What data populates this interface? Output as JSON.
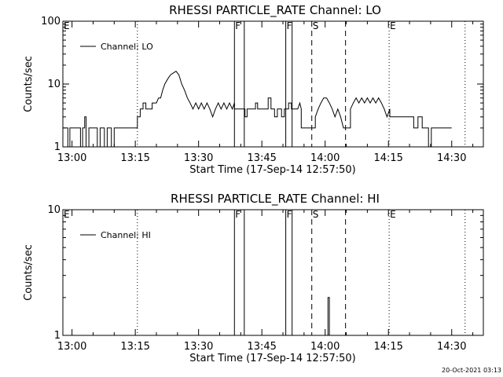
{
  "footer_timestamp": "20-Oct-2021 03:13",
  "colors": {
    "background": "#ffffff",
    "foreground": "#000000"
  },
  "chart_data": [
    {
      "type": "line",
      "title": "RHESSI PARTICLE_RATE Channel: LO",
      "xlabel": "Start Time (17-Sep-14 12:57:50)",
      "ylabel": "Counts/sec",
      "y_scale": "log",
      "ylim": [
        1,
        100
      ],
      "xlim": [
        "12:57:50",
        "14:37:30"
      ],
      "x_ticks": [
        "13:00",
        "13:15",
        "13:30",
        "13:45",
        "14:00",
        "14:15",
        "14:30"
      ],
      "y_ticks": [
        "1",
        "10",
        "100"
      ],
      "legend": {
        "position": "top-left",
        "entries": [
          "Channel: LO"
        ]
      },
      "grid": false,
      "annotations": [
        {
          "label": "E",
          "time": "12:57:50",
          "style": "dotted"
        },
        {
          "label": "",
          "time": "13:15:30",
          "style": "dotted"
        },
        {
          "label": "F",
          "time": "13:38:30",
          "style": "solid"
        },
        {
          "label": "",
          "time": "13:40:50",
          "style": "solid"
        },
        {
          "label": "F",
          "time": "13:50:40",
          "style": "solid"
        },
        {
          "label": "",
          "time": "13:52:10",
          "style": "solid"
        },
        {
          "label": "S",
          "time": "13:56:50",
          "style": "dashed"
        },
        {
          "label": "",
          "time": "14:04:50",
          "style": "dashed"
        },
        {
          "label": "E",
          "time": "14:15:10",
          "style": "dotted"
        },
        {
          "label": "",
          "time": "14:33:10",
          "style": "dotted"
        }
      ],
      "series": [
        {
          "name": "Channel: LO",
          "points": [
            [
              "12:57:50",
              2
            ],
            [
              "12:59:00",
              2
            ],
            [
              "12:59:00",
              1
            ],
            [
              "12:59:30",
              1
            ],
            [
              "12:59:30",
              2
            ],
            [
              "13:02:00",
              2
            ],
            [
              "13:02:00",
              1
            ],
            [
              "13:02:30",
              1
            ],
            [
              "13:02:30",
              2
            ],
            [
              "13:03:00",
              2
            ],
            [
              "13:03:00",
              3
            ],
            [
              "13:03:20",
              3
            ],
            [
              "13:03:20",
              1
            ],
            [
              "13:04:00",
              1
            ],
            [
              "13:04:00",
              2
            ],
            [
              "13:06:00",
              2
            ],
            [
              "13:06:00",
              1
            ],
            [
              "13:06:40",
              1
            ],
            [
              "13:06:40",
              2
            ],
            [
              "13:07:40",
              2
            ],
            [
              "13:07:40",
              1
            ],
            [
              "13:08:20",
              1
            ],
            [
              "13:08:20",
              2
            ],
            [
              "13:09:20",
              2
            ],
            [
              "13:09:20",
              1
            ],
            [
              "13:10:00",
              1
            ],
            [
              "13:10:00",
              2
            ],
            [
              "13:15:30",
              2
            ],
            [
              "13:15:30",
              3
            ],
            [
              "13:16:10",
              3
            ],
            [
              "13:16:10",
              4
            ],
            [
              "13:16:50",
              4
            ],
            [
              "13:16:50",
              5
            ],
            [
              "13:17:30",
              5
            ],
            [
              "13:17:30",
              4
            ],
            [
              "13:19:00",
              4
            ],
            [
              "13:19:00",
              5
            ],
            [
              "13:20:00",
              5
            ],
            [
              "13:20:30",
              6
            ],
            [
              "13:21:00",
              6
            ],
            [
              "13:21:30",
              8
            ],
            [
              "13:22:00",
              10
            ],
            [
              "13:22:40",
              12
            ],
            [
              "13:23:20",
              14
            ],
            [
              "13:24:00",
              15
            ],
            [
              "13:24:40",
              16
            ],
            [
              "13:25:20",
              14
            ],
            [
              "13:26:00",
              10
            ],
            [
              "13:26:40",
              8
            ],
            [
              "13:27:20",
              6
            ],
            [
              "13:28:00",
              5
            ],
            [
              "13:28:40",
              4
            ],
            [
              "13:29:20",
              5
            ],
            [
              "13:30:00",
              4
            ],
            [
              "13:30:40",
              5
            ],
            [
              "13:31:20",
              4
            ],
            [
              "13:32:00",
              5
            ],
            [
              "13:32:40",
              4
            ],
            [
              "13:33:20",
              3
            ],
            [
              "13:34:00",
              4
            ],
            [
              "13:34:40",
              5
            ],
            [
              "13:35:20",
              4
            ],
            [
              "13:36:00",
              5
            ],
            [
              "13:36:40",
              4
            ],
            [
              "13:37:20",
              5
            ],
            [
              "13:38:00",
              4
            ],
            [
              "13:38:30",
              5
            ],
            [
              "13:38:30",
              4
            ],
            [
              "13:41:00",
              4
            ],
            [
              "13:41:00",
              3
            ],
            [
              "13:41:30",
              3
            ],
            [
              "13:41:30",
              4
            ],
            [
              "13:43:30",
              4
            ],
            [
              "13:43:30",
              5
            ],
            [
              "13:44:00",
              5
            ],
            [
              "13:44:00",
              4
            ],
            [
              "13:46:30",
              4
            ],
            [
              "13:46:30",
              6
            ],
            [
              "13:47:10",
              6
            ],
            [
              "13:47:10",
              4
            ],
            [
              "13:48:00",
              4
            ],
            [
              "13:48:00",
              3
            ],
            [
              "13:48:40",
              3
            ],
            [
              "13:48:40",
              4
            ],
            [
              "13:49:40",
              4
            ],
            [
              "13:49:40",
              3
            ],
            [
              "13:50:20",
              3
            ],
            [
              "13:50:20",
              4
            ],
            [
              "13:51:20",
              4
            ],
            [
              "13:51:20",
              5
            ],
            [
              "13:52:00",
              5
            ],
            [
              "13:52:00",
              4
            ],
            [
              "13:53:30",
              4
            ],
            [
              "13:54:00",
              5
            ],
            [
              "13:54:20",
              4
            ],
            [
              "13:54:20",
              2
            ],
            [
              "13:57:40",
              2
            ],
            [
              "13:57:40",
              3
            ],
            [
              "13:58:20",
              4
            ],
            [
              "13:59:00",
              5
            ],
            [
              "13:59:40",
              6
            ],
            [
              "14:00:20",
              6
            ],
            [
              "14:01:00",
              5
            ],
            [
              "14:01:40",
              4
            ],
            [
              "14:02:20",
              3
            ],
            [
              "14:03:00",
              4
            ],
            [
              "14:03:40",
              3
            ],
            [
              "14:04:20",
              2
            ],
            [
              "14:05:00",
              2
            ],
            [
              "14:06:00",
              2
            ],
            [
              "14:06:00",
              4
            ],
            [
              "14:06:40",
              5
            ],
            [
              "14:07:20",
              6
            ],
            [
              "14:08:00",
              5
            ],
            [
              "14:08:40",
              6
            ],
            [
              "14:09:20",
              5
            ],
            [
              "14:10:00",
              6
            ],
            [
              "14:10:40",
              5
            ],
            [
              "14:11:20",
              6
            ],
            [
              "14:12:00",
              5
            ],
            [
              "14:12:40",
              6
            ],
            [
              "14:13:20",
              5
            ],
            [
              "14:14:00",
              4
            ],
            [
              "14:14:40",
              3
            ],
            [
              "14:15:20",
              4
            ],
            [
              "14:15:20",
              3
            ],
            [
              "14:21:00",
              3
            ],
            [
              "14:21:00",
              2
            ],
            [
              "14:22:00",
              2
            ],
            [
              "14:22:00",
              3
            ],
            [
              "14:23:00",
              3
            ],
            [
              "14:23:00",
              2
            ],
            [
              "14:24:30",
              2
            ],
            [
              "14:24:30",
              1
            ],
            [
              "14:25:10",
              1
            ],
            [
              "14:25:10",
              2
            ],
            [
              "14:30:00",
              2
            ]
          ]
        }
      ]
    },
    {
      "type": "line",
      "title": "RHESSI PARTICLE_RATE Channel: HI",
      "xlabel": "Start Time (17-Sep-14 12:57:50)",
      "ylabel": "Counts/sec",
      "y_scale": "log",
      "ylim": [
        1,
        10
      ],
      "xlim": [
        "12:57:50",
        "14:37:30"
      ],
      "x_ticks": [
        "13:00",
        "13:15",
        "13:30",
        "13:45",
        "14:00",
        "14:15",
        "14:30"
      ],
      "y_ticks": [
        "1",
        "10"
      ],
      "legend": {
        "position": "top-left",
        "entries": [
          "Channel: HI"
        ]
      },
      "grid": false,
      "annotations": [
        {
          "label": "E",
          "time": "12:57:50",
          "style": "dotted"
        },
        {
          "label": "",
          "time": "13:15:30",
          "style": "dotted"
        },
        {
          "label": "F",
          "time": "13:38:30",
          "style": "solid"
        },
        {
          "label": "",
          "time": "13:40:50",
          "style": "solid"
        },
        {
          "label": "F",
          "time": "13:50:40",
          "style": "solid"
        },
        {
          "label": "",
          "time": "13:52:10",
          "style": "solid"
        },
        {
          "label": "S",
          "time": "13:56:50",
          "style": "dashed"
        },
        {
          "label": "",
          "time": "14:04:50",
          "style": "dashed"
        },
        {
          "label": "E",
          "time": "14:15:10",
          "style": "dotted"
        },
        {
          "label": "",
          "time": "14:33:10",
          "style": "dotted"
        }
      ],
      "series": [
        {
          "name": "Channel: HI",
          "points": [
            [
              "14:00:20",
              1
            ],
            [
              "14:00:40",
              1
            ],
            [
              "14:00:40",
              2
            ],
            [
              "14:01:00",
              2
            ],
            [
              "14:01:00",
              1
            ],
            [
              "14:01:20",
              1
            ]
          ]
        }
      ]
    }
  ]
}
